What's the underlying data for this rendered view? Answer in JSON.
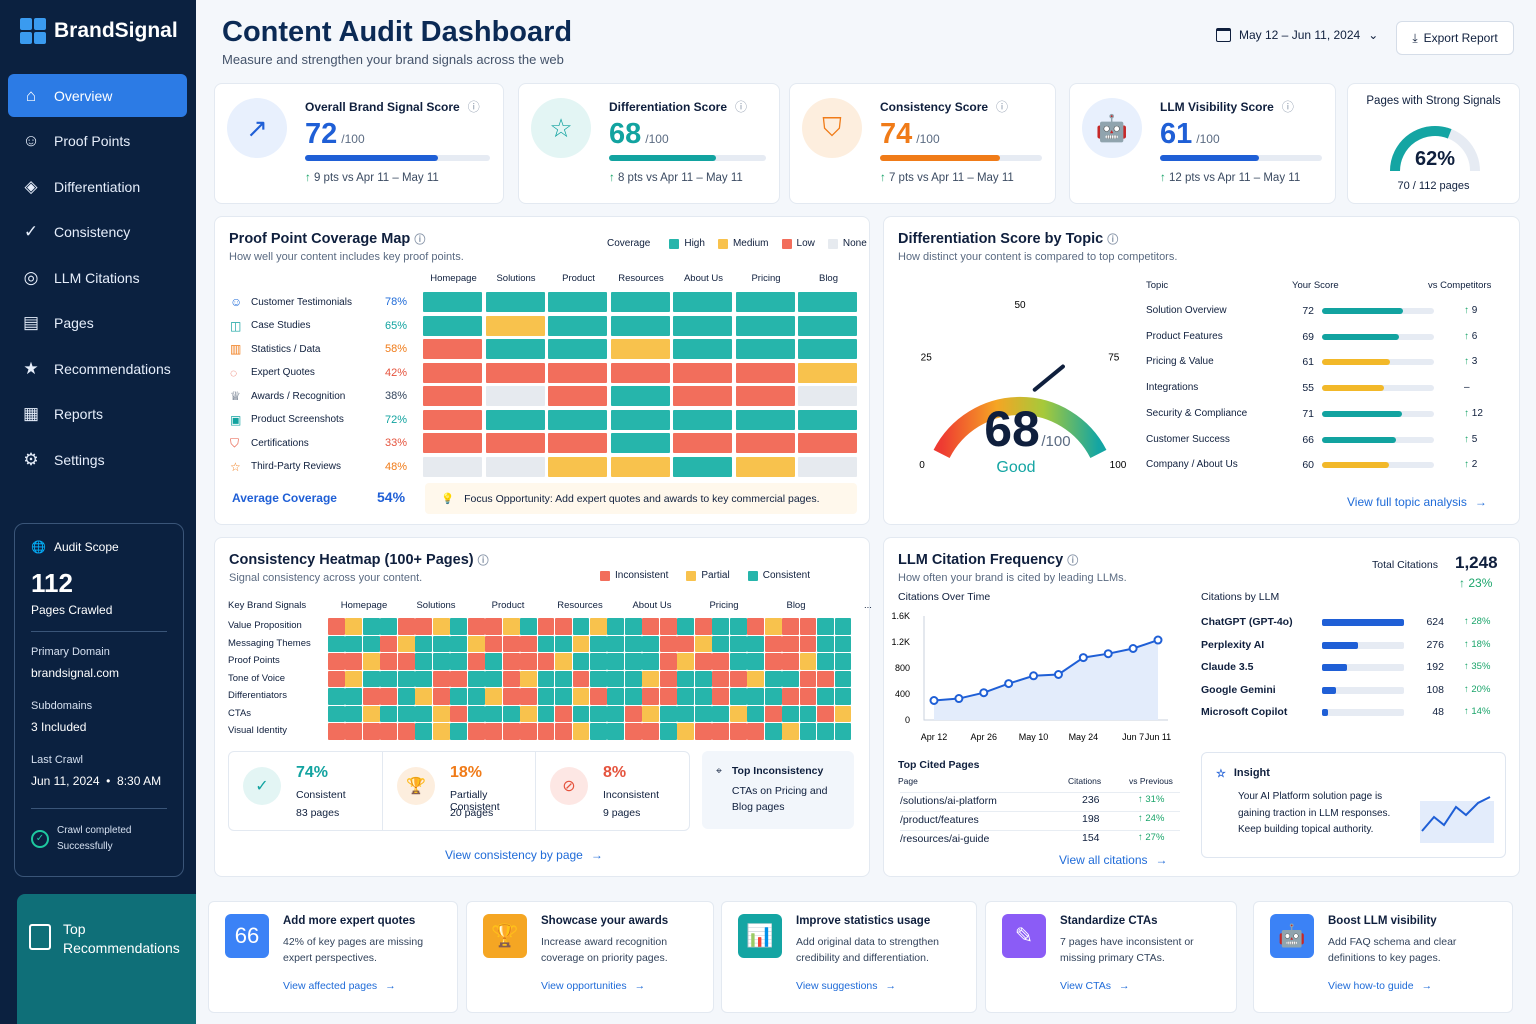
{
  "brand": "BrandSignal",
  "nav": [
    "Overview",
    "Proof Points",
    "Differentiation",
    "Consistency",
    "LLM Citations",
    "Pages",
    "Recommendations",
    "Reports",
    "Settings"
  ],
  "scope": {
    "title": "Audit Scope",
    "count": "112",
    "count_label": "Pages Crawled",
    "domain_label": "Primary Domain",
    "domain": "brandsignal.com",
    "sub_label": "Subdomains",
    "sub": "3 Included",
    "crawl_label": "Last Crawl",
    "crawl": "Jun 11, 2024  •  8:30 AM",
    "status1": "Crawl completed",
    "status2": "Successfully"
  },
  "top_rec_label": "Top Recommendations",
  "header": {
    "title": "Content Audit Dashboard",
    "subtitle": "Measure and strengthen your brand signals across the web",
    "date": "May 12 – Jun 11, 2024",
    "export": "Export Report"
  },
  "scores": [
    {
      "label": "Overall Brand Signal Score",
      "value": "72",
      "of": "/100",
      "pct": 0.72,
      "delta": "9 pts vs Apr 11 – May 11",
      "color": "#1f5fd6",
      "bg": "#e8f0fd"
    },
    {
      "label": "Differentiation Score",
      "value": "68",
      "of": "/100",
      "pct": 0.68,
      "delta": "8 pts vs Apr 11 – May 11",
      "color": "#12a3a0",
      "bg": "#e3f5f4"
    },
    {
      "label": "Consistency Score",
      "value": "74",
      "of": "/100",
      "pct": 0.74,
      "delta": "7 pts vs Apr 11 – May 11",
      "color": "#f07b18",
      "bg": "#fdeede"
    },
    {
      "label": "LLM Visibility Score",
      "value": "61",
      "of": "/100",
      "pct": 0.61,
      "delta": "12 pts vs Apr 11 – May 11",
      "color": "#1f5fd6",
      "bg": "#e8f0fd"
    }
  ],
  "strong": {
    "label": "Pages with Strong Signals",
    "pct": "62%",
    "pct_value": 0.62,
    "sub": "70 / 112 pages"
  },
  "coverage": {
    "title": "Proof Point Coverage Map",
    "sub": "How well your content includes key proof points.",
    "legend_label": "Coverage",
    "legend": [
      "High",
      "Medium",
      "Low",
      "None"
    ],
    "columns": [
      "Homepage",
      "Solutions",
      "Product",
      "Resources",
      "About Us",
      "Pricing",
      "Blog"
    ],
    "rows": [
      {
        "label": "Customer Testimonials",
        "pct": "78%",
        "color": "#1f6bd8",
        "cells": [
          "H",
          "H",
          "H",
          "H",
          "H",
          "H",
          "H"
        ]
      },
      {
        "label": "Case Studies",
        "pct": "65%",
        "color": "#12a3a0",
        "cells": [
          "H",
          "M",
          "H",
          "H",
          "H",
          "H",
          "H"
        ]
      },
      {
        "label": "Statistics / Data",
        "pct": "58%",
        "color": "#f07b18",
        "cells": [
          "L",
          "H",
          "H",
          "M",
          "H",
          "H",
          "H"
        ]
      },
      {
        "label": "Expert Quotes",
        "pct": "42%",
        "color": "#e5533d",
        "cells": [
          "L",
          "L",
          "L",
          "L",
          "L",
          "L",
          "M"
        ]
      },
      {
        "label": "Awards / Recognition",
        "pct": "38%",
        "color": "#33445c",
        "cells": [
          "L",
          "N",
          "L",
          "H",
          "L",
          "L",
          "N"
        ]
      },
      {
        "label": "Product Screenshots",
        "pct": "72%",
        "color": "#12a3a0",
        "cells": [
          "L",
          "H",
          "H",
          "H",
          "H",
          "H",
          "H"
        ]
      },
      {
        "label": "Certifications",
        "pct": "33%",
        "color": "#e5533d",
        "cells": [
          "L",
          "L",
          "L",
          "H",
          "L",
          "L",
          "L"
        ]
      },
      {
        "label": "Third-Party Reviews",
        "pct": "48%",
        "color": "#f07b18",
        "cells": [
          "N",
          "N",
          "M",
          "M",
          "H",
          "M",
          "N"
        ]
      }
    ],
    "avg_label": "Average Coverage",
    "avg": "54%",
    "focus": "Focus Opportunity: Add expert quotes and awards to key commercial pages."
  },
  "diff": {
    "title": "Differentiation Score by Topic",
    "sub": "How distinct your content is compared to top competitors.",
    "gauge_value": "68",
    "gauge_of": "/100",
    "gauge_label": "Good",
    "gauge_num": 68,
    "ticks": [
      "0",
      "25",
      "50",
      "75",
      "100"
    ],
    "headers": [
      "Topic",
      "Your Score",
      "vs Competitors"
    ],
    "topics": [
      {
        "name": "Solution Overview",
        "score": "72",
        "val": 72,
        "color": "#12a3a0",
        "delta": "9"
      },
      {
        "name": "Product Features",
        "score": "69",
        "val": 69,
        "color": "#12a3a0",
        "delta": "6"
      },
      {
        "name": "Pricing & Value",
        "score": "61",
        "val": 61,
        "color": "#f2b829",
        "delta": "3"
      },
      {
        "name": "Integrations",
        "score": "55",
        "val": 55,
        "color": "#f2b829",
        "delta": "–"
      },
      {
        "name": "Security & Compliance",
        "score": "71",
        "val": 71,
        "color": "#12a3a0",
        "delta": "12"
      },
      {
        "name": "Customer Success",
        "score": "66",
        "val": 66,
        "color": "#12a3a0",
        "delta": "5"
      },
      {
        "name": "Company / About Us",
        "score": "60",
        "val": 60,
        "color": "#f2b829",
        "delta": "2"
      }
    ],
    "link": "View full topic analysis"
  },
  "consistency": {
    "title": "Consistency Heatmap (100+ Pages)",
    "sub": "Signal consistency across your content.",
    "legend": [
      "Inconsistent",
      "Partial",
      "Consistent"
    ],
    "col_head": "Key Brand Signals",
    "columns": [
      "Homepage",
      "Solutions",
      "Product",
      "Resources",
      "About Us",
      "Pricing",
      "Blog",
      "..."
    ],
    "rows": [
      "Value Proposition",
      "Messaging Themes",
      "Proof Points",
      "Tone of Voice",
      "Differentiators",
      "CTAs",
      "Visual Identity"
    ],
    "stats": [
      {
        "pct": "74%",
        "label": "Consistent",
        "pages": "83 pages",
        "color": "#12a3a0"
      },
      {
        "pct": "18%",
        "label": "Partially Consistent",
        "pages": "20 pages",
        "color": "#f07b18"
      },
      {
        "pct": "8%",
        "label": "Inconsistent",
        "pages": "9 pages",
        "color": "#e5533d"
      }
    ],
    "top_title": "Top Inconsistency",
    "top_text": "CTAs on Pricing and Blog pages",
    "link": "View consistency by page"
  },
  "llm": {
    "title": "LLM Citation Frequency",
    "sub": "How often your brand is cited by leading LLMs.",
    "total_label": "Total Citations",
    "total": "1,248",
    "total_delta": "23%",
    "chart_title": "Citations Over Time",
    "chart_data": {
      "type": "line",
      "x": [
        "Apr 12",
        "Apr 19",
        "Apr 26",
        "May 3",
        "May 10",
        "May 17",
        "May 24",
        "May 31",
        "Jun 7",
        "Jun 11"
      ],
      "values": [
        300,
        330,
        420,
        560,
        680,
        700,
        960,
        1020,
        1100,
        1230
      ],
      "ylim": [
        0,
        1600
      ],
      "yticks": [
        "0",
        "400",
        "800",
        "1.2K",
        "1.6K"
      ],
      "xticks": [
        "Apr 12",
        "Apr 26",
        "May 10",
        "May 24",
        "Jun 7",
        "Jun 11"
      ]
    },
    "by_llm_title": "Citations by LLM",
    "by_llm": [
      {
        "name": "ChatGPT (GPT-4o)",
        "count": "624",
        "n": 624,
        "delta": "28%"
      },
      {
        "name": "Perplexity AI",
        "count": "276",
        "n": 276,
        "delta": "18%"
      },
      {
        "name": "Claude 3.5",
        "count": "192",
        "n": 192,
        "delta": "35%"
      },
      {
        "name": "Google Gemini",
        "count": "108",
        "n": 108,
        "delta": "20%"
      },
      {
        "name": "Microsoft Copilot",
        "count": "48",
        "n": 48,
        "delta": "14%"
      }
    ],
    "pages_title": "Top Cited Pages",
    "pages_headers": [
      "Page",
      "Citations",
      "vs Previous"
    ],
    "pages": [
      {
        "page": "/solutions/ai-platform",
        "count": "236",
        "delta": "31%"
      },
      {
        "page": "/product/features",
        "count": "198",
        "delta": "24%"
      },
      {
        "page": "/resources/ai-guide",
        "count": "154",
        "delta": "27%"
      }
    ],
    "link": "View all citations",
    "insight_title": "Insight",
    "insight": "Your AI Platform solution page is gaining traction in LLM responses. Keep building topical authority."
  },
  "recs": [
    {
      "title": "Add more expert quotes",
      "desc": "42% of key pages are missing expert perspectives.",
      "link": "View affected pages",
      "color": "#3b82f6",
      "glyph": "66"
    },
    {
      "title": "Showcase your awards",
      "desc": "Increase award recognition coverage on priority pages.",
      "link": "View opportunities",
      "color": "#f5a623",
      "glyph": "🏆"
    },
    {
      "title": "Improve statistics usage",
      "desc": "Add original data to strengthen credibility and differentiation.",
      "link": "View suggestions",
      "color": "#14a5a3",
      "glyph": "📊"
    },
    {
      "title": "Standardize CTAs",
      "desc": "7 pages have inconsistent or missing primary CTAs.",
      "link": "View CTAs",
      "color": "#8b5cf6",
      "glyph": "✎"
    },
    {
      "title": "Boost LLM visibility",
      "desc": "Add FAQ schema and clear definitions to key pages.",
      "link": "View how-to guide",
      "color": "#3b82f6",
      "glyph": "🤖"
    }
  ]
}
